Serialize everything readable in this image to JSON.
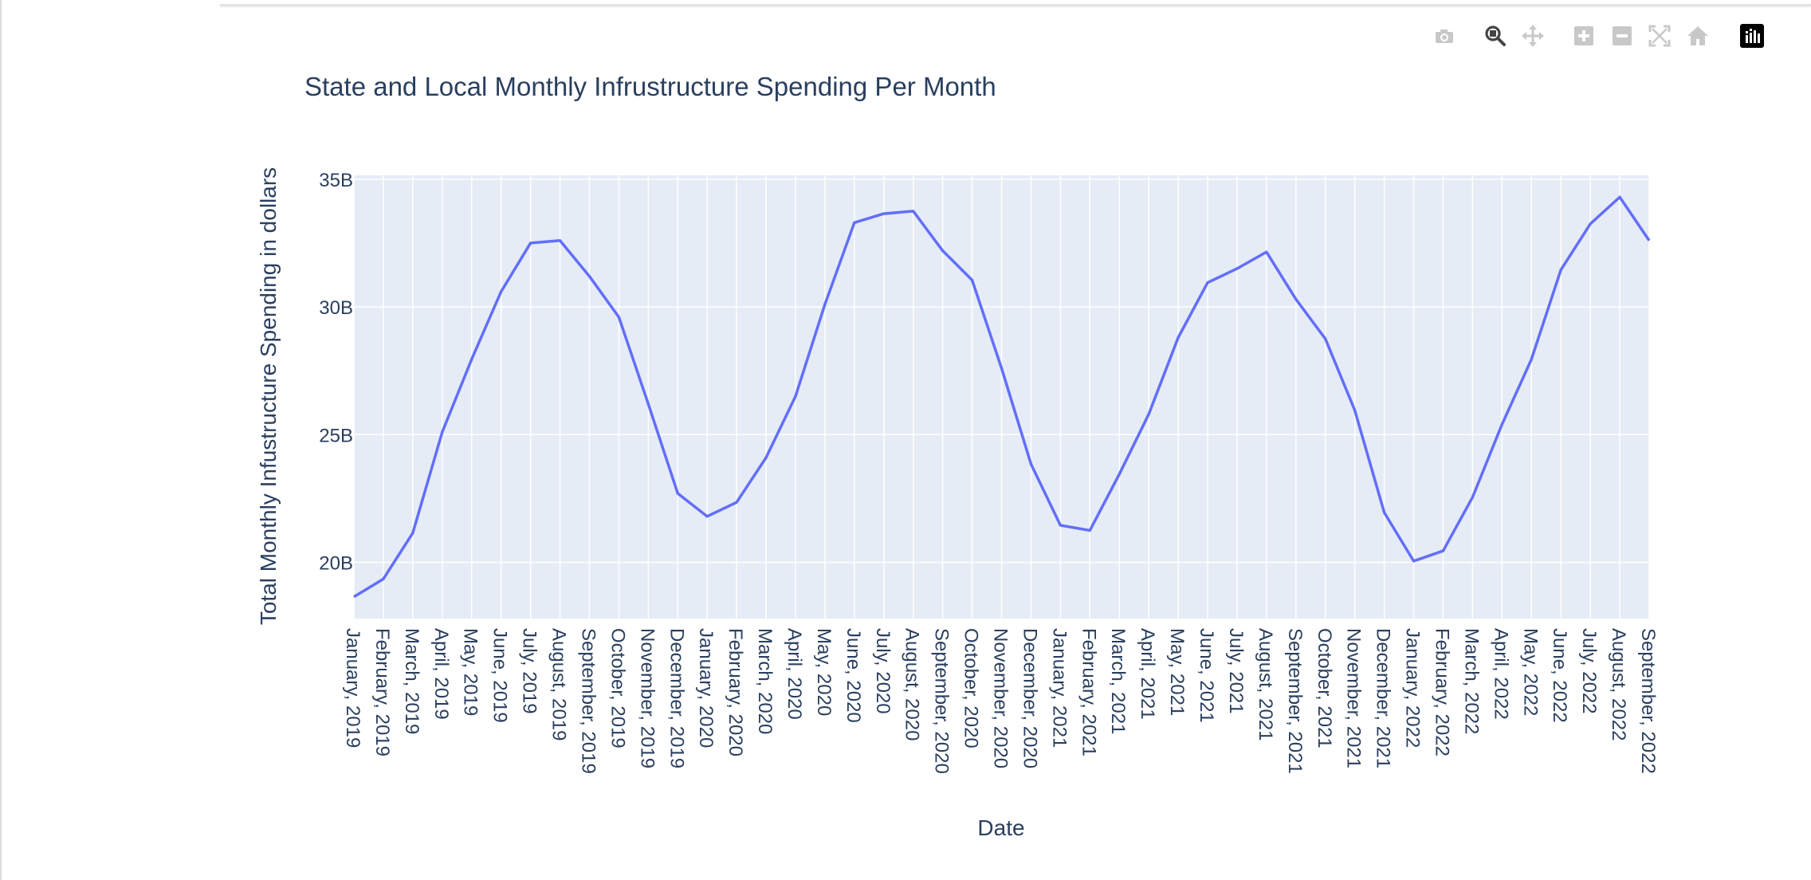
{
  "modebar": {
    "buttons": [
      {
        "name": "camera-icon",
        "title": "Download plot as a png",
        "active": false
      },
      {
        "name": "zoom-icon",
        "title": "Zoom",
        "active": true
      },
      {
        "name": "pan-icon",
        "title": "Pan",
        "active": false
      },
      {
        "name": "zoom-in-icon",
        "title": "Zoom in",
        "active": false
      },
      {
        "name": "zoom-out-icon",
        "title": "Zoom out",
        "active": false
      },
      {
        "name": "autoscale-icon",
        "title": "Autoscale",
        "active": false
      },
      {
        "name": "reset-axes-icon",
        "title": "Reset axes",
        "active": false
      },
      {
        "name": "plotly-logo-icon",
        "title": "Produced with Plotly",
        "active": false
      }
    ]
  },
  "colors": {
    "plot_background": "#e5ecf6",
    "gridline": "#ffffff",
    "line": "#636efa",
    "text": "#2a3f5f",
    "modebar_icon": "#c8c8c8",
    "modebar_active": "#444444",
    "logo_bg": "#000000"
  },
  "chart_data": {
    "type": "line",
    "title": "State and Local Monthly Infrustructure Spending Per Month",
    "xlabel": "Date",
    "ylabel": "Total Monthly Infustructure Spending in dollars",
    "x": [
      "January, 2019",
      "February, 2019",
      "March, 2019",
      "April, 2019",
      "May, 2019",
      "June, 2019",
      "July, 2019",
      "August, 2019",
      "September, 2019",
      "October, 2019",
      "November, 2019",
      "December, 2019",
      "January, 2020",
      "February, 2020",
      "March, 2020",
      "April, 2020",
      "May, 2020",
      "June, 2020",
      "July, 2020",
      "August, 2020",
      "September, 2020",
      "October, 2020",
      "November, 2020",
      "December, 2020",
      "January, 2021",
      "February, 2021",
      "March, 2021",
      "April, 2021",
      "May, 2021",
      "June, 2021",
      "July, 2021",
      "August, 2021",
      "September, 2021",
      "October, 2021",
      "November, 2021",
      "December, 2021",
      "January, 2022",
      "February, 2022",
      "March, 2022",
      "April, 2022",
      "May, 2022",
      "June, 2022",
      "July, 2022",
      "August, 2022",
      "September, 2022"
    ],
    "y": [
      18.65,
      19.35,
      21.15,
      25.1,
      27.95,
      30.6,
      32.5,
      32.6,
      31.2,
      29.6,
      26.2,
      22.7,
      21.8,
      22.35,
      24.1,
      26.5,
      30.1,
      33.3,
      33.65,
      33.75,
      32.2,
      31.05,
      27.6,
      23.85,
      21.45,
      21.25,
      23.45,
      25.8,
      28.8,
      30.95,
      31.5,
      32.15,
      30.3,
      28.75,
      25.95,
      21.95,
      20.05,
      20.45,
      22.55,
      25.4,
      27.95,
      31.45,
      33.25,
      34.3,
      32.6
    ],
    "y_unit": "billions of dollars",
    "ylim": [
      17.8,
      35.15
    ],
    "yticks": [
      20,
      25,
      30,
      35
    ],
    "ytick_labels": [
      "20B",
      "25B",
      "30B",
      "35B"
    ],
    "grid": true,
    "series": [
      {
        "values_key": "y"
      }
    ]
  }
}
